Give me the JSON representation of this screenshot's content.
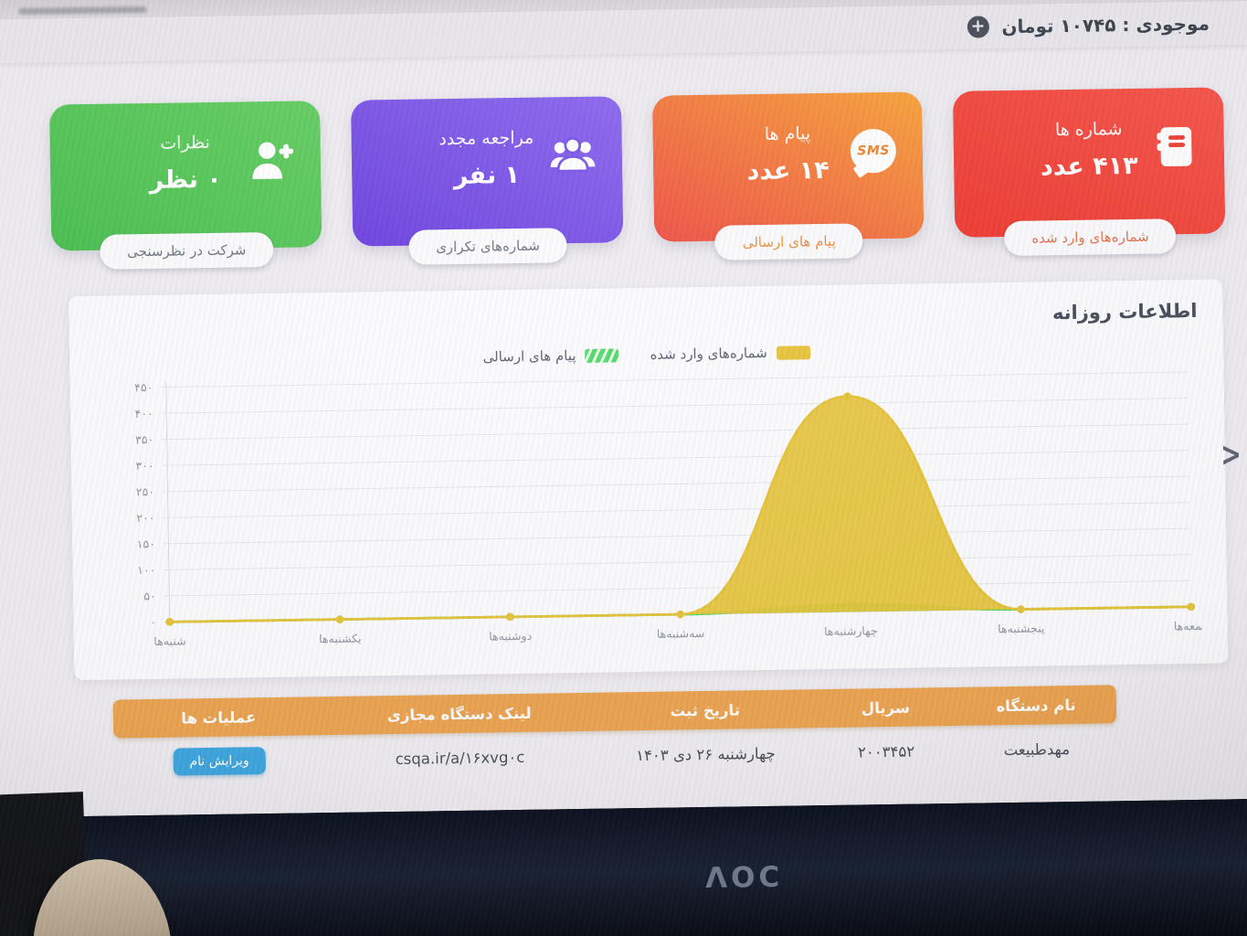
{
  "top_bar": {
    "balance_text": "موجودی : ۱۰۷۴۵ تومان",
    "add_icon": "plus-circle-icon"
  },
  "cards": [
    {
      "key": "numbers",
      "title": "شماره ها",
      "value": "۴۱۳ عدد",
      "button": "شماره‌های وارد شده",
      "icon": "address-book-icon",
      "color_from": "#f8574b",
      "color_to": "#ee3a32",
      "button_text_color": "#e2734f"
    },
    {
      "key": "messages",
      "title": "پیام ها",
      "value": "۱۴ عدد",
      "button": "پیام های ارسالی",
      "icon": "sms-bubble-icon",
      "icon_text": "SMS",
      "color_from": "#f9a43c",
      "color_to": "#ef4f44",
      "button_text_color": "#e8913f"
    },
    {
      "key": "revisits",
      "title": "مراجعه مجدد",
      "value": "۱ نفر",
      "button": "شماره‌های تکراری",
      "icon": "people-group-icon",
      "color_from": "#8c68ef",
      "color_to": "#6a3fdf",
      "button_text_color": "#6f7480"
    },
    {
      "key": "comments",
      "title": "نظرات",
      "value": "۰ نظر",
      "button": "شرکت در نظرسنجی",
      "icon": "person-add-icon",
      "color_from": "#64ce61",
      "color_to": "#48bf4f",
      "button_text_color": "#6f7480"
    }
  ],
  "chart_data": {
    "type": "area",
    "title": "اطلاعات روزانه",
    "categories": [
      "شنبه‌ها",
      "یکشنبه‌ها",
      "دوشنبه‌ها",
      "سه‌شنبه‌ها",
      "چهارشنبه‌ها",
      "پنجشنبه‌ها",
      "جمعه‌ها"
    ],
    "series": [
      {
        "name": "شماره‌های وارد شده",
        "color": "#e7c43a",
        "swatch_style": "solid",
        "values": [
          0,
          0,
          0,
          0,
          413,
          0,
          0
        ]
      },
      {
        "name": "پیام های ارسالی",
        "color": "#55d96a",
        "swatch_style": "striped",
        "values": [
          0,
          0,
          0,
          0,
          14,
          0,
          0
        ]
      }
    ],
    "ylim": [
      0,
      450
    ],
    "ytick_step": 50,
    "ytick_labels": [
      "۰",
      "۵۰",
      "۱۰۰",
      "۱۵۰",
      "۲۰۰",
      "۲۵۰",
      "۳۰۰",
      "۳۵۰",
      "۴۰۰",
      "۴۵۰"
    ],
    "grid": true,
    "legend_position": "top-center",
    "curve": "smooth"
  },
  "pager": {
    "next_symbol": ">"
  },
  "table": {
    "headers": [
      "نام دستگاه",
      "سریال",
      "تاریخ ثبت",
      "لینک دستگاه مجازی",
      "عملیات ها"
    ],
    "row": {
      "device_name": "مهدطبیعت",
      "serial": "۲۰۰۳۴۵۲",
      "register_date": "چهارشنبه ۲۶ دی ۱۴۰۳",
      "virtual_link": "csqa.ir/a/۱۶xvg۰c",
      "action_label": "ویرایش نام"
    }
  },
  "monitor": {
    "brand_logo": "ΛOC"
  }
}
